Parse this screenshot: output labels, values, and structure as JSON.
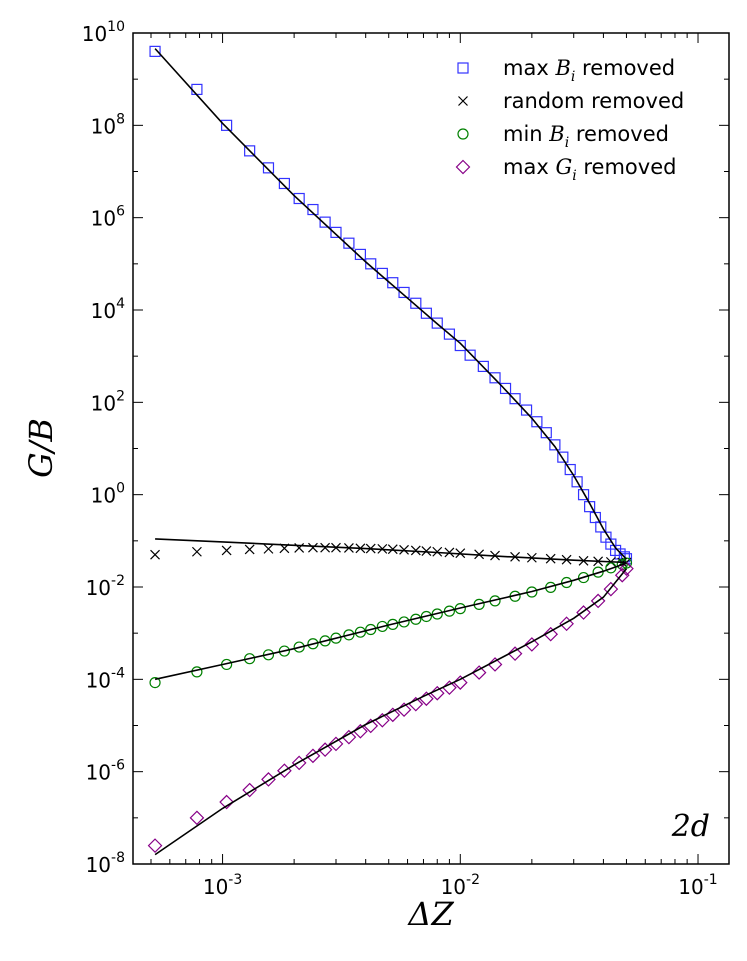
{
  "chart_data": {
    "type": "scatter",
    "xscale": "log",
    "yscale": "log",
    "xlim": [
      0.00042,
      0.135
    ],
    "ylim": [
      1e-08,
      10000000000.0
    ],
    "grid": false,
    "xlabel": "ΔZ",
    "ylabel": "G/B",
    "panel_label": "2d",
    "legend_position": "top-right",
    "x_ticks": [
      {
        "value": 0.001,
        "base": "10",
        "exp": "-3"
      },
      {
        "value": 0.01,
        "base": "10",
        "exp": "-2"
      },
      {
        "value": 0.1,
        "base": "10",
        "exp": "-1"
      }
    ],
    "y_ticks": [
      {
        "value": 1e-08,
        "base": "10",
        "exp": "-8"
      },
      {
        "value": 1e-06,
        "base": "10",
        "exp": "-6"
      },
      {
        "value": 0.0001,
        "base": "10",
        "exp": "-4"
      },
      {
        "value": 0.01,
        "base": "10",
        "exp": "-2"
      },
      {
        "value": 1,
        "base": "10",
        "exp": "0"
      },
      {
        "value": 100,
        "base": "10",
        "exp": "2"
      },
      {
        "value": 10000,
        "base": "10",
        "exp": "4"
      },
      {
        "value": 1000000,
        "base": "10",
        "exp": "6"
      },
      {
        "value": 100000000,
        "base": "10",
        "exp": "8"
      },
      {
        "value": 10000000000,
        "base": "10",
        "exp": "10"
      }
    ],
    "series": [
      {
        "name_pre": "max ",
        "name_sym": "B",
        "name_sub": "i",
        "name_post": " removed",
        "marker": "square",
        "color": "#3333ff",
        "points": [
          [
            0.00052,
            4000000000.0
          ],
          [
            0.00078,
            600000000.0
          ],
          [
            0.00104,
            100000000.0
          ],
          [
            0.0013,
            28000000.0
          ],
          [
            0.00156,
            12000000.0
          ],
          [
            0.00182,
            5500000.0
          ],
          [
            0.0021,
            2600000.0
          ],
          [
            0.0024,
            1500000.0
          ],
          [
            0.0027,
            800000.0
          ],
          [
            0.003,
            480000.0
          ],
          [
            0.0034,
            280000.0
          ],
          [
            0.0038,
            160000.0
          ],
          [
            0.0042,
            100000.0
          ],
          [
            0.0047,
            62000.0
          ],
          [
            0.0052,
            39000.0
          ],
          [
            0.0058,
            24000.0
          ],
          [
            0.0065,
            14000.0
          ],
          [
            0.0072,
            8500.0
          ],
          [
            0.008,
            5200.0
          ],
          [
            0.009,
            3000.0
          ],
          [
            0.01,
            1700.0
          ],
          [
            0.011,
            1050.0
          ],
          [
            0.0125,
            600
          ],
          [
            0.014,
            340
          ],
          [
            0.0155,
            200
          ],
          [
            0.017,
            120
          ],
          [
            0.019,
            68
          ],
          [
            0.021,
            38
          ],
          [
            0.023,
            22
          ],
          [
            0.025,
            12
          ],
          [
            0.027,
            6.5
          ],
          [
            0.029,
            3.5
          ],
          [
            0.031,
            1.9
          ],
          [
            0.033,
            1.0
          ],
          [
            0.035,
            0.55
          ],
          [
            0.037,
            0.32
          ],
          [
            0.039,
            0.2
          ],
          [
            0.041,
            0.12
          ],
          [
            0.043,
            0.085
          ],
          [
            0.045,
            0.062
          ],
          [
            0.047,
            0.052
          ],
          [
            0.049,
            0.045
          ],
          [
            0.05,
            0.041
          ]
        ],
        "fit": [
          [
            0.00052,
            4600000000.0
          ],
          [
            0.001,
            110000000.0
          ],
          [
            0.002,
            3000000.0
          ],
          [
            0.004,
            110000.0
          ],
          [
            0.006,
            18000.0
          ],
          [
            0.008,
            5000.0
          ],
          [
            0.01,
            1900.0
          ],
          [
            0.015,
            220
          ],
          [
            0.02,
            45
          ],
          [
            0.025,
            11
          ],
          [
            0.03,
            2.6
          ],
          [
            0.035,
            0.65
          ],
          [
            0.04,
            0.18
          ],
          [
            0.045,
            0.07
          ],
          [
            0.05,
            0.04
          ]
        ]
      },
      {
        "name_pre": "random removed",
        "name_sym": "",
        "name_sub": "",
        "name_post": "",
        "marker": "x",
        "color": "#000000",
        "points": [
          [
            0.00052,
            0.05
          ],
          [
            0.00078,
            0.058
          ],
          [
            0.00104,
            0.062
          ],
          [
            0.0013,
            0.065
          ],
          [
            0.00156,
            0.067
          ],
          [
            0.00182,
            0.069
          ],
          [
            0.0021,
            0.07
          ],
          [
            0.0024,
            0.071
          ],
          [
            0.0027,
            0.071
          ],
          [
            0.003,
            0.071
          ],
          [
            0.0034,
            0.07
          ],
          [
            0.0038,
            0.069
          ],
          [
            0.0042,
            0.068
          ],
          [
            0.0047,
            0.067
          ],
          [
            0.0052,
            0.066
          ],
          [
            0.0058,
            0.064
          ],
          [
            0.0065,
            0.062
          ],
          [
            0.0072,
            0.06
          ],
          [
            0.008,
            0.058
          ],
          [
            0.009,
            0.056
          ],
          [
            0.01,
            0.054
          ],
          [
            0.012,
            0.051
          ],
          [
            0.014,
            0.048
          ],
          [
            0.017,
            0.045
          ],
          [
            0.02,
            0.043
          ],
          [
            0.024,
            0.041
          ],
          [
            0.028,
            0.039
          ],
          [
            0.033,
            0.037
          ],
          [
            0.038,
            0.036
          ],
          [
            0.043,
            0.035
          ],
          [
            0.048,
            0.034
          ],
          [
            0.05,
            0.034
          ]
        ],
        "fit": [
          [
            0.00052,
            0.11
          ],
          [
            0.001,
            0.095
          ],
          [
            0.002,
            0.08
          ],
          [
            0.004,
            0.068
          ],
          [
            0.008,
            0.056
          ],
          [
            0.015,
            0.046
          ],
          [
            0.03,
            0.038
          ],
          [
            0.05,
            0.034
          ]
        ]
      },
      {
        "name_pre": "min ",
        "name_sym": "B",
        "name_sub": "i",
        "name_post": " removed",
        "marker": "circle",
        "color": "#008000",
        "points": [
          [
            0.00052,
            8.5e-05
          ],
          [
            0.00078,
            0.000145
          ],
          [
            0.00104,
            0.00021
          ],
          [
            0.0013,
            0.00028
          ],
          [
            0.00156,
            0.00034
          ],
          [
            0.00182,
            0.00041
          ],
          [
            0.0021,
            0.0005
          ],
          [
            0.0024,
            0.00059
          ],
          [
            0.0027,
            0.00068
          ],
          [
            0.003,
            0.00078
          ],
          [
            0.0034,
            0.00092
          ],
          [
            0.0038,
            0.00105
          ],
          [
            0.0042,
            0.0012
          ],
          [
            0.0047,
            0.0014
          ],
          [
            0.0052,
            0.00155
          ],
          [
            0.0058,
            0.00175
          ],
          [
            0.0065,
            0.002
          ],
          [
            0.0072,
            0.0023
          ],
          [
            0.008,
            0.0026
          ],
          [
            0.009,
            0.003
          ],
          [
            0.01,
            0.0034
          ],
          [
            0.012,
            0.0042
          ],
          [
            0.014,
            0.005
          ],
          [
            0.017,
            0.0063
          ],
          [
            0.02,
            0.0078
          ],
          [
            0.024,
            0.0098
          ],
          [
            0.028,
            0.0125
          ],
          [
            0.033,
            0.016
          ],
          [
            0.038,
            0.021
          ],
          [
            0.043,
            0.026
          ],
          [
            0.048,
            0.031
          ],
          [
            0.05,
            0.033
          ]
        ],
        "fit": [
          [
            0.00052,
            0.0001
          ],
          [
            0.001,
            0.00021
          ],
          [
            0.002,
            0.00046
          ],
          [
            0.005,
            0.0015
          ],
          [
            0.01,
            0.0035
          ],
          [
            0.02,
            0.008
          ],
          [
            0.03,
            0.014
          ],
          [
            0.04,
            0.022
          ],
          [
            0.05,
            0.033
          ]
        ]
      },
      {
        "name_pre": "max ",
        "name_sym": "G",
        "name_sub": "i",
        "name_post": " removed",
        "marker": "diamond",
        "color": "#880088",
        "points": [
          [
            0.00052,
            2.5e-08
          ],
          [
            0.00078,
            1e-07
          ],
          [
            0.00104,
            2.2e-07
          ],
          [
            0.0013,
            4e-07
          ],
          [
            0.00156,
            6.8e-07
          ],
          [
            0.00182,
            1.05e-06
          ],
          [
            0.0021,
            1.55e-06
          ],
          [
            0.0024,
            2.2e-06
          ],
          [
            0.0027,
            3e-06
          ],
          [
            0.003,
            4e-06
          ],
          [
            0.0034,
            5.6e-06
          ],
          [
            0.0038,
            7.5e-06
          ],
          [
            0.0042,
            9.8e-06
          ],
          [
            0.0047,
            1.3e-05
          ],
          [
            0.0052,
            1.7e-05
          ],
          [
            0.0058,
            2.2e-05
          ],
          [
            0.0065,
            2.9e-05
          ],
          [
            0.0072,
            3.8e-05
          ],
          [
            0.008,
            5e-05
          ],
          [
            0.009,
            6.6e-05
          ],
          [
            0.01,
            8.5e-05
          ],
          [
            0.012,
            0.00014
          ],
          [
            0.014,
            0.00021
          ],
          [
            0.017,
            0.00036
          ],
          [
            0.02,
            0.00057
          ],
          [
            0.024,
            0.00095
          ],
          [
            0.028,
            0.0016
          ],
          [
            0.033,
            0.0028
          ],
          [
            0.038,
            0.005
          ],
          [
            0.043,
            0.009
          ],
          [
            0.048,
            0.018
          ],
          [
            0.05,
            0.025
          ]
        ],
        "fit": [
          [
            0.00052,
            1.6e-08
          ],
          [
            0.001,
            1.6e-07
          ],
          [
            0.002,
            1.4e-06
          ],
          [
            0.004,
            1.05e-05
          ],
          [
            0.007,
            4.3e-05
          ],
          [
            0.01,
            0.0001
          ],
          [
            0.02,
            0.00065
          ],
          [
            0.03,
            0.0021
          ],
          [
            0.04,
            0.006
          ],
          [
            0.05,
            0.025
          ]
        ]
      }
    ]
  }
}
